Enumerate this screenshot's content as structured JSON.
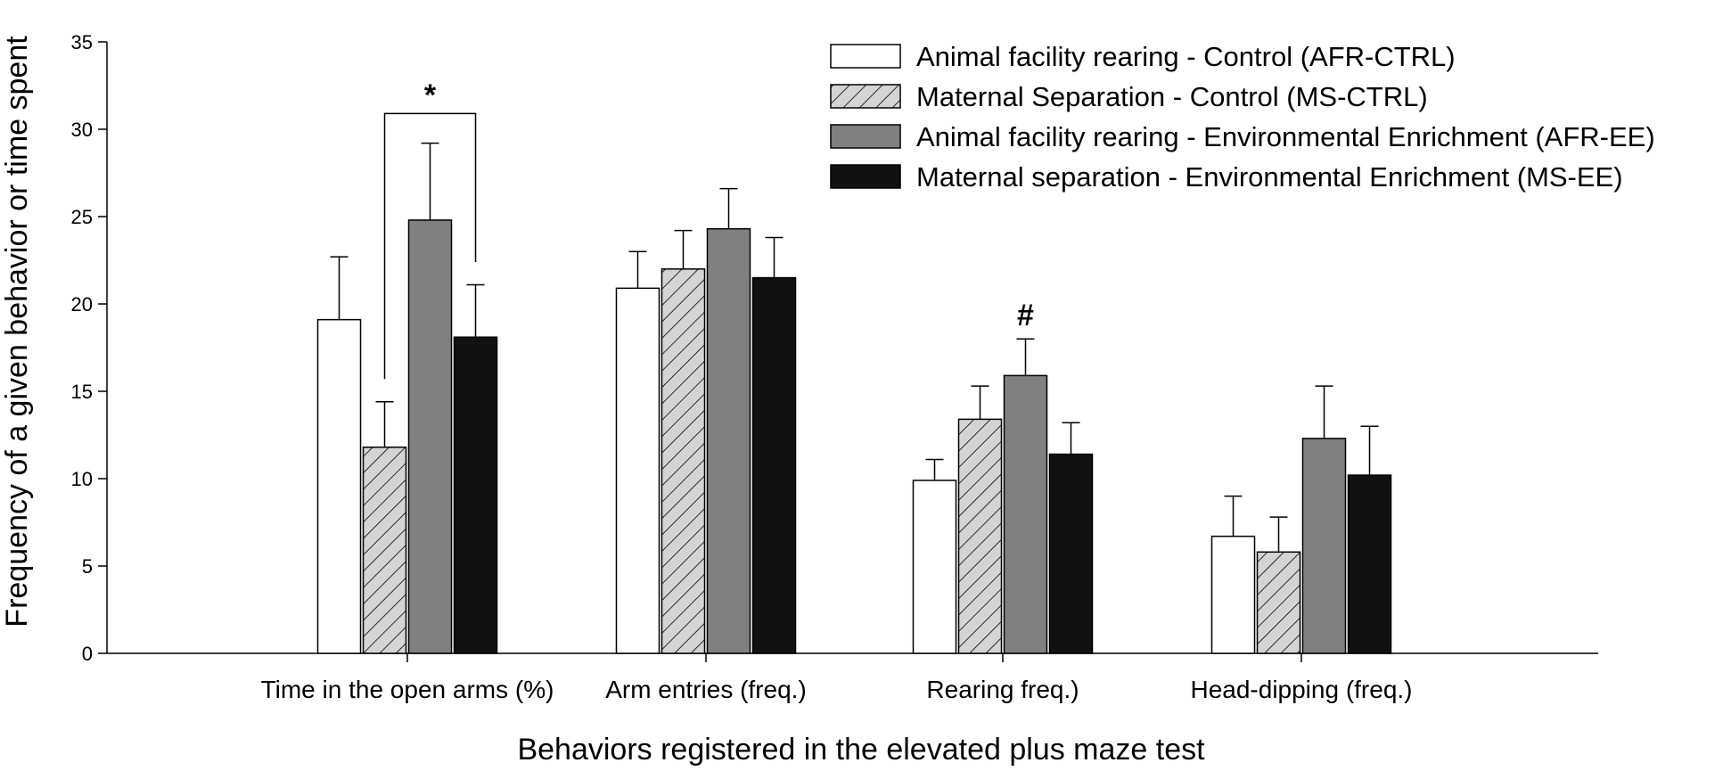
{
  "chart_data": {
    "type": "bar",
    "title": "",
    "xlabel": "Behaviors registered in the elevated plus maze test",
    "ylabel": "Frequency of a given behavior or time spent",
    "ylim": [
      0,
      35
    ],
    "yticks": [
      0,
      5,
      10,
      15,
      20,
      25,
      30,
      35
    ],
    "categories": [
      "Time in the open arms (%)",
      "Arm entries (freq.)",
      "Rearing freq.)",
      "Head-dipping (freq.)"
    ],
    "legend_position": "top-right",
    "series": [
      {
        "name": "Animal facility rearing - Control (AFR-CTRL)",
        "fill": "#ffffff",
        "pattern": "none",
        "values": [
          19.1,
          20.9,
          9.9,
          6.7
        ],
        "errors": [
          3.6,
          2.1,
          1.2,
          2.3
        ]
      },
      {
        "name": "Maternal Separation - Control (MS-CTRL)",
        "fill": "#d4d4d4",
        "pattern": "hatch",
        "values": [
          11.8,
          22.0,
          13.4,
          5.8
        ],
        "errors": [
          2.6,
          2.2,
          1.9,
          2.0
        ]
      },
      {
        "name": "Animal facility rearing - Environmental Enrichment (AFR-EE)",
        "fill": "#808080",
        "pattern": "none",
        "values": [
          24.8,
          24.3,
          15.9,
          12.3
        ],
        "errors": [
          4.4,
          2.3,
          2.1,
          3.0
        ]
      },
      {
        "name": "Maternal separation - Environmental Enrichment (MS-EE)",
        "fill": "#111111",
        "pattern": "none",
        "values": [
          18.1,
          21.5,
          11.4,
          10.2
        ],
        "errors": [
          3.0,
          2.3,
          1.8,
          2.8
        ]
      }
    ],
    "annotations": [
      {
        "text": "*",
        "category": 0,
        "bracket_between_series": [
          1,
          3
        ],
        "bracket_y": 30.9,
        "label_y": 32.5
      },
      {
        "text": "#",
        "category": 2,
        "series": 2,
        "label_y": 19.5
      }
    ]
  }
}
